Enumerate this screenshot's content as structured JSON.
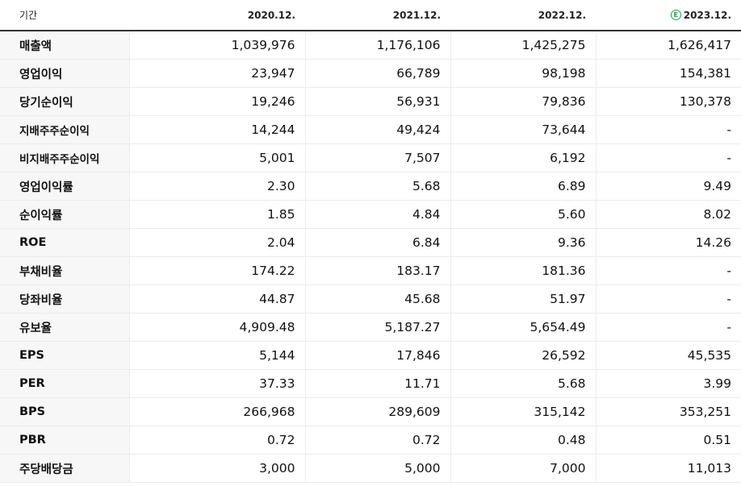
{
  "header": {
    "period_label": "기간",
    "columns": [
      "2020.12.",
      "2021.12.",
      "2022.12.",
      "2023.12."
    ],
    "estimate_badge": "E",
    "colors": {
      "estimate_badge": "#17a34a"
    }
  },
  "rows": [
    {
      "label": "매출액",
      "values": [
        "1,039,976",
        "1,176,106",
        "1,425,275",
        "1,626,417"
      ]
    },
    {
      "label": "영업이익",
      "values": [
        "23,947",
        "66,789",
        "98,198",
        "154,381"
      ]
    },
    {
      "label": "당기순이익",
      "values": [
        "19,246",
        "56,931",
        "79,836",
        "130,378"
      ]
    },
    {
      "label": "지배주주순이익",
      "values": [
        "14,244",
        "49,424",
        "73,644",
        "-"
      ]
    },
    {
      "label": "비지배주주순이익",
      "values": [
        "5,001",
        "7,507",
        "6,192",
        "-"
      ]
    },
    {
      "label": "영업이익률",
      "values": [
        "2.30",
        "5.68",
        "6.89",
        "9.49"
      ]
    },
    {
      "label": "순이익률",
      "values": [
        "1.85",
        "4.84",
        "5.60",
        "8.02"
      ]
    },
    {
      "label": "ROE",
      "values": [
        "2.04",
        "6.84",
        "9.36",
        "14.26"
      ]
    },
    {
      "label": "부채비율",
      "values": [
        "174.22",
        "183.17",
        "181.36",
        "-"
      ]
    },
    {
      "label": "당좌비율",
      "values": [
        "44.87",
        "45.68",
        "51.97",
        "-"
      ]
    },
    {
      "label": "유보율",
      "values": [
        "4,909.48",
        "5,187.27",
        "5,654.49",
        "-"
      ]
    },
    {
      "label": "EPS",
      "values": [
        "5,144",
        "17,846",
        "26,592",
        "45,535"
      ]
    },
    {
      "label": "PER",
      "values": [
        "37.33",
        "11.71",
        "5.68",
        "3.99"
      ]
    },
    {
      "label": "BPS",
      "values": [
        "266,968",
        "289,609",
        "315,142",
        "353,251"
      ]
    },
    {
      "label": "PBR",
      "values": [
        "0.72",
        "0.72",
        "0.48",
        "0.51"
      ]
    },
    {
      "label": "주당배당금",
      "values": [
        "3,000",
        "5,000",
        "7,000",
        "11,013"
      ]
    }
  ]
}
